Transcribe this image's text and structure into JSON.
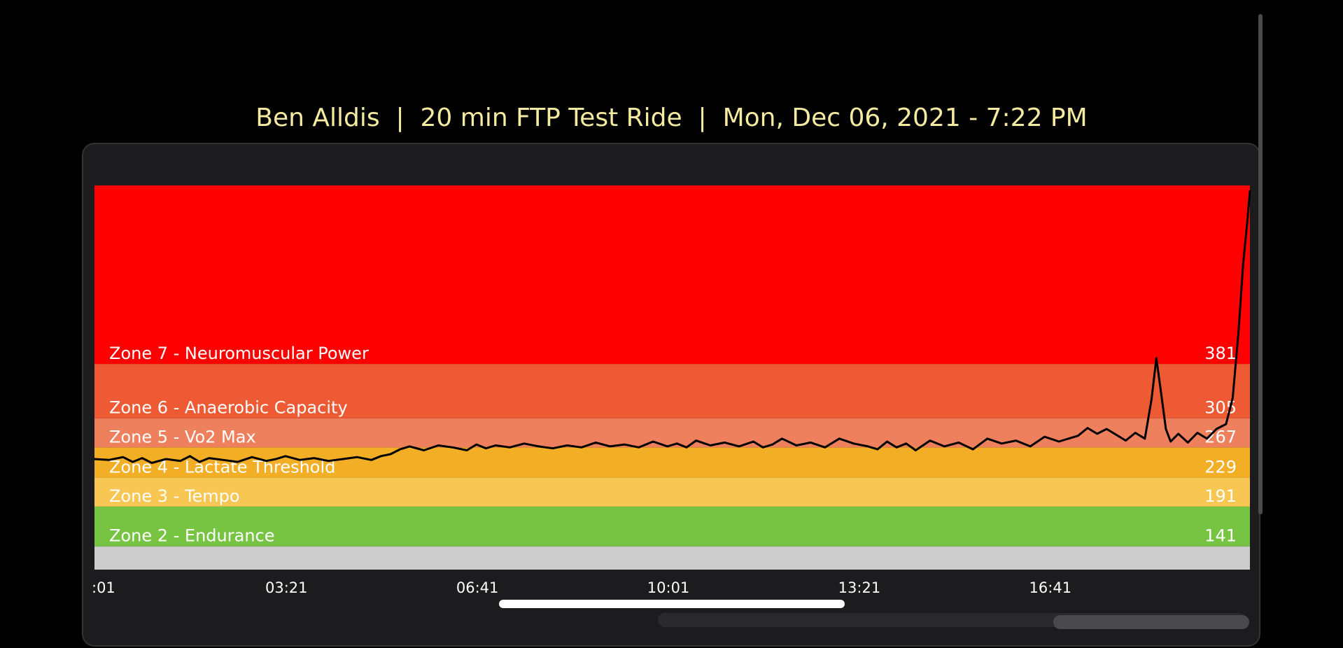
{
  "header": {
    "title": "Ben Alldis  |  20 min FTP Test Ride  |  Mon, Dec 06, 2021 - 7:22 PM"
  },
  "chart_data": {
    "type": "line",
    "title": "Ben Alldis  |  20 min FTP Test Ride  |  Mon, Dec 06, 2021 - 7:22 PM",
    "xlabel": "",
    "ylabel": "",
    "x_range_seconds": [
      0,
      1210
    ],
    "ylim": [
      86,
      482
    ],
    "x_ticks": [
      ":01",
      "03:21",
      "06:41",
      "10:01",
      "13:21",
      "16:41"
    ],
    "x_tick_seconds": [
      1,
      201,
      401,
      601,
      801,
      1001
    ],
    "grid": false,
    "line_color": "#000000",
    "zones": [
      {
        "name": "",
        "value": null,
        "lower": 86,
        "upper": 110,
        "color": "#cccccc",
        "label_color": "#ffffff"
      },
      {
        "name": "Zone 2 - Endurance",
        "value": "141",
        "lower": 110,
        "upper": 151,
        "color": "#76c442",
        "label_color": "#ffffff"
      },
      {
        "name": "Zone 3 - Tempo",
        "value": "191",
        "lower": 151,
        "upper": 181,
        "color": "#f8c653",
        "label_color": "#ffffff"
      },
      {
        "name": "Zone 4 - Lactate Threshold",
        "value": "229",
        "lower": 181,
        "upper": 212,
        "color": "#f2ae24",
        "label_color": "#ffffff"
      },
      {
        "name": "Zone 5 - Vo2 Max",
        "value": "267",
        "lower": 212,
        "upper": 242,
        "color": "#ee805d",
        "label_color": "#ffffff"
      },
      {
        "name": "Zone 6 - Anaerobic Capacity",
        "value": "305",
        "lower": 242,
        "upper": 298,
        "color": "#ee5a33",
        "label_color": "#ffffff"
      },
      {
        "name": "Zone 7 - Neuromuscular Power",
        "value": "381",
        "lower": 298,
        "upper": 482,
        "color": "#ff0000",
        "label_color": "#ffffff"
      }
    ],
    "series": [
      {
        "x": [
          0,
          15,
          30,
          40,
          50,
          60,
          75,
          90,
          100,
          110,
          120,
          135,
          150,
          165,
          180,
          190,
          200,
          215,
          230,
          245,
          260,
          275,
          290,
          300,
          310,
          320,
          330,
          345,
          360,
          375,
          390,
          400,
          410,
          420,
          435,
          450,
          465,
          480,
          495,
          510,
          525,
          540,
          555,
          570,
          585,
          600,
          610,
          620,
          630,
          645,
          660,
          675,
          690,
          700,
          710,
          720,
          735,
          750,
          765,
          780,
          795,
          810,
          820,
          830,
          840,
          850,
          860,
          875,
          890,
          905,
          920,
          935,
          950,
          965,
          980,
          995,
          1010,
          1020,
          1030,
          1040,
          1050,
          1060,
          1070,
          1080,
          1090,
          1100,
          1107,
          1112,
          1117,
          1122,
          1127,
          1135,
          1145,
          1155,
          1165,
          1175,
          1185,
          1192,
          1198,
          1203,
          1207,
          1210
        ],
        "y": [
          200,
          199,
          202,
          197,
          201,
          196,
          200,
          198,
          203,
          197,
          201,
          199,
          197,
          202,
          198,
          200,
          203,
          199,
          201,
          198,
          200,
          202,
          199,
          203,
          205,
          210,
          213,
          209,
          214,
          212,
          209,
          215,
          211,
          214,
          212,
          216,
          213,
          211,
          214,
          212,
          217,
          213,
          215,
          212,
          218,
          213,
          216,
          212,
          219,
          214,
          217,
          213,
          218,
          212,
          215,
          221,
          214,
          217,
          212,
          221,
          216,
          213,
          210,
          218,
          212,
          216,
          209,
          219,
          213,
          217,
          210,
          221,
          216,
          219,
          213,
          223,
          218,
          221,
          224,
          232,
          226,
          231,
          225,
          219,
          227,
          221,
          262,
          304,
          268,
          231,
          218,
          226,
          217,
          227,
          221,
          231,
          236,
          263,
          330,
          402,
          442,
          476
        ]
      }
    ]
  }
}
